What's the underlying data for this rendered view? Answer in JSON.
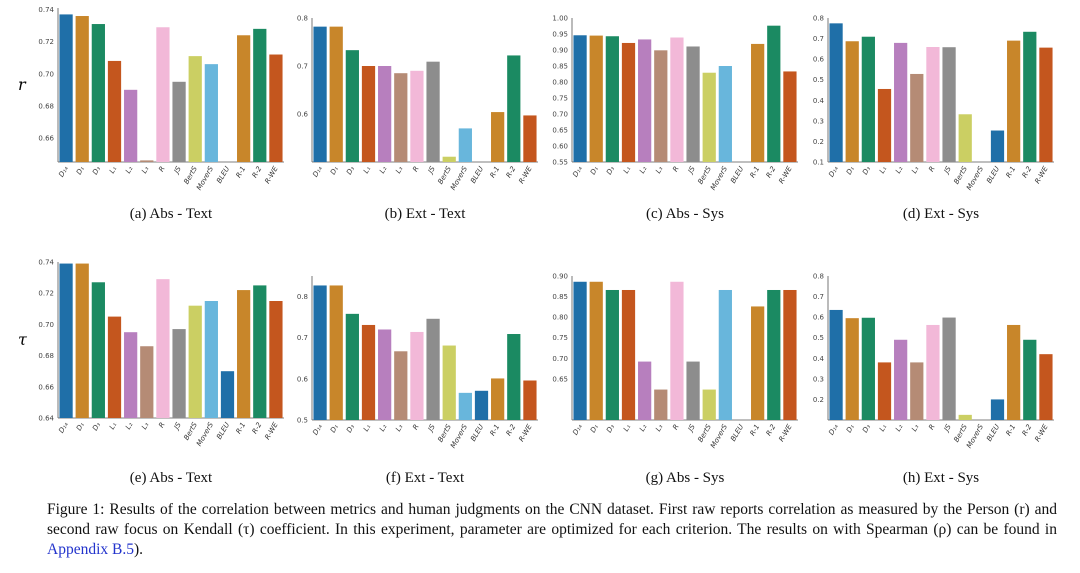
{
  "chart_data": [
    {
      "type": "bar",
      "panel": "a",
      "caption": "(a) Abs - Text",
      "ylabel": "r",
      "ylim": [
        0.645,
        0.741
      ],
      "ticks": [
        "0.74",
        "0.72",
        "0.70",
        "0.68",
        "0.66"
      ],
      "categories": [
        "D_{14}",
        "D_1",
        "D_3",
        "L_1",
        "L_2",
        "L_3",
        "R",
        "JS",
        "BertS",
        "MoverS",
        "BLEU",
        "R-1",
        "R-2",
        "R-WE"
      ],
      "values": [
        0.737,
        0.736,
        0.731,
        0.708,
        0.69,
        0.646,
        0.729,
        0.695,
        0.711,
        0.706,
        null,
        0.724,
        0.728,
        0.712
      ]
    },
    {
      "type": "bar",
      "panel": "b",
      "caption": "(b) Ext - Text",
      "ylabel": "",
      "ylim": [
        0.5,
        0.8
      ],
      "ticks": [
        "0.8",
        "0.7",
        "0.6"
      ],
      "categories": [
        "D_{14}",
        "D_1",
        "D_3",
        "L_1",
        "L_2",
        "L_3",
        "R",
        "JS",
        "BertS",
        "MoverS",
        "BLEU",
        "R-1",
        "R-2",
        "R-WE"
      ],
      "values": [
        0.782,
        0.782,
        0.733,
        0.7,
        0.7,
        0.685,
        0.69,
        0.709,
        0.511,
        0.57,
        null,
        0.604,
        0.722,
        0.597
      ]
    },
    {
      "type": "bar",
      "panel": "c",
      "caption": "(c) Abs - Sys",
      "ylabel": "",
      "ylim": [
        0.55,
        1.0
      ],
      "ticks": [
        "1.00",
        "0.95",
        "0.90",
        "0.85",
        "0.80",
        "0.75",
        "0.70",
        "0.65",
        "0.60",
        "0.55"
      ],
      "categories": [
        "D_{14}",
        "D_1",
        "D_3",
        "L_1",
        "L_2",
        "L_3",
        "R",
        "JS",
        "BertS",
        "MoverS",
        "BLEU",
        "R-1",
        "R-2",
        "R-WE"
      ],
      "values": [
        0.946,
        0.945,
        0.943,
        0.922,
        0.933,
        0.899,
        0.939,
        0.911,
        0.829,
        0.85,
        null,
        0.919,
        0.976,
        0.833
      ]
    },
    {
      "type": "bar",
      "panel": "d",
      "caption": "(d) Ext - Sys",
      "ylabel": "",
      "ylim": [
        0.1,
        0.8
      ],
      "ticks": [
        "0.8",
        "0.7",
        "0.6",
        "0.5",
        "0.4",
        "0.3",
        "0.2",
        "0.1"
      ],
      "categories": [
        "D_{14}",
        "D_1",
        "D_3",
        "L_1",
        "L_2",
        "L_3",
        "R",
        "JS",
        "BertS",
        "MoverS",
        "BLEU",
        "R-1",
        "R-2",
        "R-WE"
      ],
      "values": [
        0.774,
        0.687,
        0.709,
        0.455,
        0.679,
        0.528,
        0.659,
        0.658,
        0.332,
        null,
        0.253,
        0.69,
        0.733,
        0.656
      ]
    },
    {
      "type": "bar",
      "panel": "e",
      "caption": "(e) Abs - Text",
      "ylabel": "τ",
      "ylim": [
        0.64,
        0.74
      ],
      "ticks": [
        "0.74",
        "0.72",
        "0.70",
        "0.68",
        "0.66",
        "0.64"
      ],
      "categories": [
        "D_{14}",
        "D_1",
        "D_3",
        "L_1",
        "L_2",
        "L_3",
        "R",
        "JS",
        "BertS",
        "MoverS",
        "BLEU",
        "R-1",
        "R-2",
        "R-WE"
      ],
      "values": [
        0.739,
        0.739,
        0.727,
        0.705,
        0.695,
        0.686,
        0.729,
        0.697,
        0.712,
        0.715,
        0.67,
        0.722,
        0.725,
        0.715
      ]
    },
    {
      "type": "bar",
      "panel": "f",
      "caption": "(f) Ext - Text",
      "ylabel": "",
      "ylim": [
        0.5,
        0.85
      ],
      "ticks": [
        "0.8",
        "0.7",
        "0.6",
        "0.5"
      ],
      "categories": [
        "D_{14}",
        "D_1",
        "D_3",
        "L_1",
        "L_2",
        "L_3",
        "R",
        "JS",
        "BertS",
        "MoverS",
        "BLEU",
        "R-1",
        "R-2",
        "R-WE"
      ],
      "values": [
        0.827,
        0.827,
        0.758,
        0.731,
        0.72,
        0.667,
        0.714,
        0.746,
        0.681,
        0.566,
        0.571,
        0.601,
        0.709,
        0.596
      ]
    },
    {
      "type": "bar",
      "panel": "g",
      "caption": "(g) Abs - Sys",
      "ylabel": "",
      "ylim": [
        0.55,
        0.9
      ],
      "ticks": [
        "0.90",
        "0.85",
        "0.80",
        "0.75",
        "0.70",
        "0.65"
      ],
      "categories": [
        "D_{14}",
        "D_1",
        "D_3",
        "L_1",
        "L_2",
        "L_3",
        "R",
        "JS",
        "BertS",
        "MoverS",
        "BLEU",
        "R-1",
        "R-2",
        "R-WE"
      ],
      "values": [
        0.886,
        0.886,
        0.866,
        0.866,
        0.692,
        0.624,
        0.886,
        0.692,
        0.624,
        0.866,
        null,
        0.826,
        0.866,
        0.866
      ]
    },
    {
      "type": "bar",
      "panel": "h",
      "caption": "(h) Ext - Sys",
      "ylabel": "",
      "ylim": [
        0.1,
        0.8
      ],
      "ticks": [
        "0.8",
        "0.7",
        "0.6",
        "0.5",
        "0.4",
        "0.3",
        "0.2"
      ],
      "categories": [
        "D_{14}",
        "D_1",
        "D_3",
        "L_1",
        "L_2",
        "L_3",
        "R",
        "JS",
        "BertS",
        "MoverS",
        "BLEU",
        "R-1",
        "R-2",
        "R-WE"
      ],
      "values": [
        0.635,
        0.595,
        0.597,
        0.38,
        0.49,
        0.38,
        0.562,
        0.598,
        0.125,
        null,
        0.2,
        0.562,
        0.49,
        0.42
      ]
    }
  ],
  "bar_colors": [
    "#1f6fa8",
    "#c8862a",
    "#1b8a62",
    "#c4561e",
    "#b77fbe",
    "#b58b75",
    "#f2b8d8",
    "#8d8d8d",
    "#cbcf63",
    "#68b6dc",
    "#1f6fa8",
    "#c8862a",
    "#1b8a62",
    "#c4561e"
  ],
  "caption": {
    "text": "Figure 1: Results of the correlation between metrics and human judgments on the CNN dataset. First raw reports correlation as measured by the Person (r) and second raw focus on Kendall (τ) coefficient. In this experiment, parameter are optimized for each criterion. The results on with Spearman (ρ) can be found in ",
    "link": "Appendix B.5",
    "tail": ")."
  }
}
